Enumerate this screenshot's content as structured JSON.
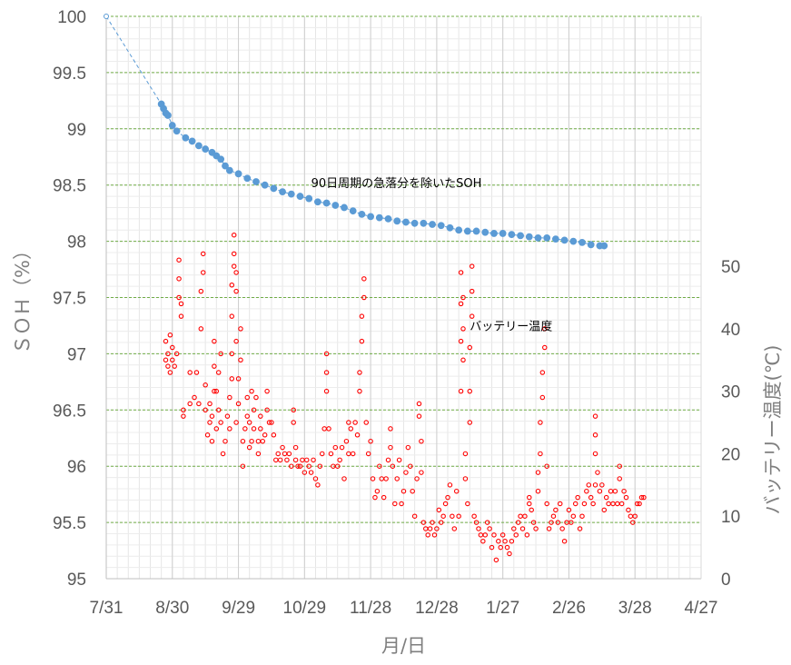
{
  "chart_data": {
    "type": "scatter",
    "title": "",
    "xlabel": "月/日",
    "ylabel_left": "ＳＯＨ（%）",
    "ylabel_right": "バッテリー温度(℃)",
    "x_day0": "7/31",
    "x_ticks": [
      {
        "day": 0,
        "label": "7/31"
      },
      {
        "day": 30,
        "label": "8/30"
      },
      {
        "day": 60,
        "label": "9/29"
      },
      {
        "day": 90,
        "label": "10/29"
      },
      {
        "day": 120,
        "label": "11/28"
      },
      {
        "day": 150,
        "label": "12/28"
      },
      {
        "day": 180,
        "label": "1/27"
      },
      {
        "day": 210,
        "label": "2/26"
      },
      {
        "day": 240,
        "label": "3/28"
      },
      {
        "day": 270,
        "label": "4/27"
      }
    ],
    "xlim": [
      0,
      270
    ],
    "ylim_left": [
      95,
      100
    ],
    "ylim_right": [
      0,
      90
    ],
    "left_ticks": [
      "95",
      "95.5",
      "96",
      "96.5",
      "97",
      "97.5",
      "98",
      "98.5",
      "99",
      "99.5",
      "100"
    ],
    "right_ticks": [
      "0",
      "10",
      "20",
      "30",
      "40",
      "50"
    ],
    "grid": true,
    "annotations": [
      {
        "text": "90日周期の急落分を除いたSOH",
        "anchor_day": 93,
        "anchor_value": 98.52
      },
      {
        "text": "バッテリー温度",
        "anchor_day": 165,
        "anchor_value": 97.25
      }
    ],
    "soh_series": {
      "color": "#5b9bd5",
      "points": [
        [
          0,
          100.0
        ],
        [
          25,
          99.22
        ],
        [
          26,
          99.18
        ],
        [
          27,
          99.14
        ],
        [
          28,
          99.12
        ],
        [
          30,
          99.03
        ],
        [
          32,
          98.98
        ],
        [
          36,
          98.92
        ],
        [
          39,
          98.89
        ],
        [
          42,
          98.85
        ],
        [
          45,
          98.82
        ],
        [
          48,
          98.79
        ],
        [
          50,
          98.76
        ],
        [
          52,
          98.73
        ],
        [
          54,
          98.67
        ],
        [
          56,
          98.63
        ],
        [
          60,
          98.6
        ],
        [
          64,
          98.56
        ],
        [
          68,
          98.53
        ],
        [
          72,
          98.5
        ],
        [
          76,
          98.47
        ],
        [
          80,
          98.44
        ],
        [
          84,
          98.42
        ],
        [
          88,
          98.4
        ],
        [
          92,
          98.38
        ],
        [
          96,
          98.35
        ],
        [
          100,
          98.34
        ],
        [
          104,
          98.32
        ],
        [
          108,
          98.3
        ],
        [
          112,
          98.27
        ],
        [
          116,
          98.24
        ],
        [
          120,
          98.22
        ],
        [
          124,
          98.21
        ],
        [
          128,
          98.2
        ],
        [
          132,
          98.18
        ],
        [
          136,
          98.17
        ],
        [
          140,
          98.16
        ],
        [
          144,
          98.16
        ],
        [
          148,
          98.15
        ],
        [
          152,
          98.14
        ],
        [
          156,
          98.12
        ],
        [
          160,
          98.1
        ],
        [
          164,
          98.09
        ],
        [
          168,
          98.09
        ],
        [
          172,
          98.08
        ],
        [
          176,
          98.07
        ],
        [
          180,
          98.07
        ],
        [
          184,
          98.06
        ],
        [
          188,
          98.05
        ],
        [
          192,
          98.04
        ],
        [
          196,
          98.03
        ],
        [
          200,
          98.03
        ],
        [
          204,
          98.02
        ],
        [
          208,
          98.01
        ],
        [
          212,
          98.0
        ],
        [
          216,
          97.99
        ],
        [
          220,
          97.97
        ],
        [
          224,
          97.96
        ],
        [
          226,
          97.96
        ]
      ]
    },
    "temperature_series": {
      "color": "#ff0000",
      "points": [
        [
          27,
          35
        ],
        [
          27,
          38
        ],
        [
          28,
          34
        ],
        [
          28,
          36
        ],
        [
          29,
          33
        ],
        [
          29,
          39
        ],
        [
          30,
          35
        ],
        [
          30,
          37
        ],
        [
          31,
          34
        ],
        [
          32,
          36
        ],
        [
          33,
          45
        ],
        [
          33,
          48
        ],
        [
          33,
          51
        ],
        [
          34,
          42
        ],
        [
          34,
          44
        ],
        [
          35,
          26
        ],
        [
          35,
          27
        ],
        [
          38,
          33
        ],
        [
          38,
          28
        ],
        [
          40,
          29
        ],
        [
          41,
          33
        ],
        [
          42,
          28
        ],
        [
          43,
          40
        ],
        [
          43,
          46
        ],
        [
          44,
          49
        ],
        [
          44,
          52
        ],
        [
          45,
          31
        ],
        [
          45,
          27
        ],
        [
          46,
          23
        ],
        [
          47,
          25
        ],
        [
          47,
          28
        ],
        [
          48,
          22
        ],
        [
          48,
          26
        ],
        [
          49,
          38
        ],
        [
          49,
          34
        ],
        [
          49,
          30
        ],
        [
          50,
          30
        ],
        [
          50,
          24
        ],
        [
          51,
          33
        ],
        [
          51,
          27
        ],
        [
          52,
          25
        ],
        [
          52,
          36
        ],
        [
          53,
          20
        ],
        [
          54,
          22
        ],
        [
          55,
          26
        ],
        [
          56,
          24
        ],
        [
          56,
          29
        ],
        [
          57,
          32
        ],
        [
          57,
          36
        ],
        [
          57,
          42
        ],
        [
          57,
          47
        ],
        [
          58,
          50
        ],
        [
          58,
          52
        ],
        [
          58,
          55
        ],
        [
          59,
          46
        ],
        [
          59,
          49
        ],
        [
          59,
          38
        ],
        [
          59,
          25
        ],
        [
          60,
          28
        ],
        [
          60,
          32
        ],
        [
          61,
          35
        ],
        [
          61,
          40
        ],
        [
          62,
          18
        ],
        [
          62,
          22
        ],
        [
          63,
          24
        ],
        [
          64,
          29
        ],
        [
          64,
          26
        ],
        [
          65,
          21
        ],
        [
          65,
          25
        ],
        [
          66,
          30
        ],
        [
          66,
          22
        ],
        [
          67,
          27
        ],
        [
          67,
          24
        ],
        [
          68,
          29
        ],
        [
          69,
          22
        ],
        [
          69,
          20
        ],
        [
          70,
          26
        ],
        [
          70,
          24
        ],
        [
          71,
          22
        ],
        [
          72,
          23
        ],
        [
          73,
          30
        ],
        [
          73,
          27
        ],
        [
          74,
          25
        ],
        [
          75,
          25
        ],
        [
          76,
          23
        ],
        [
          77,
          19
        ],
        [
          78,
          20
        ],
        [
          79,
          19
        ],
        [
          80,
          21
        ],
        [
          81,
          20
        ],
        [
          82,
          19
        ],
        [
          83,
          20
        ],
        [
          84,
          18
        ],
        [
          85,
          27
        ],
        [
          85,
          25
        ],
        [
          86,
          21
        ],
        [
          86,
          19
        ],
        [
          87,
          18
        ],
        [
          88,
          18
        ],
        [
          89,
          19
        ],
        [
          90,
          17
        ],
        [
          91,
          19
        ],
        [
          92,
          18
        ],
        [
          93,
          17
        ],
        [
          94,
          19
        ],
        [
          95,
          16
        ],
        [
          96,
          15
        ],
        [
          97,
          18
        ],
        [
          98,
          20
        ],
        [
          99,
          24
        ],
        [
          100,
          30
        ],
        [
          100,
          33
        ],
        [
          100,
          36
        ],
        [
          101,
          24
        ],
        [
          102,
          20
        ],
        [
          103,
          18
        ],
        [
          104,
          21
        ],
        [
          105,
          18
        ],
        [
          106,
          19
        ],
        [
          107,
          21
        ],
        [
          108,
          16
        ],
        [
          109,
          22
        ],
        [
          110,
          25
        ],
        [
          110,
          20
        ],
        [
          111,
          24
        ],
        [
          112,
          20
        ],
        [
          113,
          25
        ],
        [
          114,
          23
        ],
        [
          115,
          30
        ],
        [
          115,
          33
        ],
        [
          116,
          38
        ],
        [
          116,
          42
        ],
        [
          117,
          45
        ],
        [
          117,
          48
        ],
        [
          118,
          25
        ],
        [
          119,
          20
        ],
        [
          120,
          22
        ],
        [
          121,
          16
        ],
        [
          122,
          13
        ],
        [
          123,
          14
        ],
        [
          124,
          18
        ],
        [
          125,
          16
        ],
        [
          126,
          13
        ],
        [
          127,
          16
        ],
        [
          128,
          19
        ],
        [
          129,
          21
        ],
        [
          129,
          24
        ],
        [
          130,
          18
        ],
        [
          131,
          12
        ],
        [
          132,
          16
        ],
        [
          133,
          19
        ],
        [
          134,
          12
        ],
        [
          135,
          14
        ],
        [
          136,
          17
        ],
        [
          137,
          21
        ],
        [
          138,
          18
        ],
        [
          139,
          14
        ],
        [
          140,
          10
        ],
        [
          141,
          16
        ],
        [
          142,
          26
        ],
        [
          142,
          28
        ],
        [
          143,
          22
        ],
        [
          143,
          17
        ],
        [
          144,
          9
        ],
        [
          145,
          8
        ],
        [
          146,
          7
        ],
        [
          147,
          8
        ],
        [
          148,
          9
        ],
        [
          149,
          7
        ],
        [
          150,
          8
        ],
        [
          151,
          11
        ],
        [
          152,
          9
        ],
        [
          153,
          10
        ],
        [
          154,
          12
        ],
        [
          155,
          13
        ],
        [
          156,
          15
        ],
        [
          157,
          10
        ],
        [
          158,
          8
        ],
        [
          159,
          14
        ],
        [
          160,
          10
        ],
        [
          161,
          30
        ],
        [
          161,
          38
        ],
        [
          161,
          44
        ],
        [
          161,
          49
        ],
        [
          162,
          45
        ],
        [
          162,
          40
        ],
        [
          162,
          35
        ],
        [
          163,
          20
        ],
        [
          163,
          16
        ],
        [
          164,
          12
        ],
        [
          165,
          25
        ],
        [
          165,
          30
        ],
        [
          165,
          37
        ],
        [
          166,
          42
        ],
        [
          166,
          46
        ],
        [
          166,
          50
        ],
        [
          167,
          10
        ],
        [
          168,
          9
        ],
        [
          169,
          8
        ],
        [
          170,
          7
        ],
        [
          171,
          6
        ],
        [
          172,
          7
        ],
        [
          173,
          9
        ],
        [
          174,
          8
        ],
        [
          175,
          5
        ],
        [
          176,
          7
        ],
        [
          177,
          3
        ],
        [
          178,
          6
        ],
        [
          179,
          5
        ],
        [
          180,
          7
        ],
        [
          181,
          6
        ],
        [
          182,
          5
        ],
        [
          183,
          4
        ],
        [
          184,
          6
        ],
        [
          185,
          8
        ],
        [
          186,
          7
        ],
        [
          187,
          9
        ],
        [
          188,
          10
        ],
        [
          189,
          8
        ],
        [
          190,
          10
        ],
        [
          191,
          7
        ],
        [
          192,
          12
        ],
        [
          192,
          13
        ],
        [
          193,
          11
        ],
        [
          194,
          9
        ],
        [
          195,
          8
        ],
        [
          196,
          14
        ],
        [
          196,
          17
        ],
        [
          197,
          20
        ],
        [
          197,
          25
        ],
        [
          198,
          29
        ],
        [
          198,
          33
        ],
        [
          199,
          37
        ],
        [
          199,
          40
        ],
        [
          200,
          18
        ],
        [
          200,
          12
        ],
        [
          201,
          8
        ],
        [
          202,
          9
        ],
        [
          203,
          10
        ],
        [
          204,
          11
        ],
        [
          205,
          9
        ],
        [
          206,
          12
        ],
        [
          207,
          8
        ],
        [
          208,
          6
        ],
        [
          209,
          9
        ],
        [
          210,
          11
        ],
        [
          211,
          9
        ],
        [
          212,
          10
        ],
        [
          213,
          12
        ],
        [
          214,
          13
        ],
        [
          215,
          8
        ],
        [
          216,
          10
        ],
        [
          217,
          12
        ],
        [
          218,
          14
        ],
        [
          219,
          15
        ],
        [
          220,
          13
        ],
        [
          221,
          12
        ],
        [
          222,
          15
        ],
        [
          222,
          20
        ],
        [
          222,
          23
        ],
        [
          222,
          26
        ],
        [
          223,
          17
        ],
        [
          224,
          14
        ],
        [
          225,
          15
        ],
        [
          226,
          11
        ],
        [
          227,
          13
        ],
        [
          228,
          12
        ],
        [
          229,
          14
        ],
        [
          230,
          12
        ],
        [
          231,
          14
        ],
        [
          232,
          12
        ],
        [
          233,
          18
        ],
        [
          233,
          16
        ],
        [
          234,
          12
        ],
        [
          235,
          14
        ],
        [
          236,
          13
        ],
        [
          237,
          11
        ],
        [
          238,
          10
        ],
        [
          239,
          9
        ],
        [
          240,
          10
        ],
        [
          241,
          12
        ],
        [
          242,
          12
        ],
        [
          243,
          13
        ],
        [
          244,
          13
        ]
      ]
    }
  }
}
